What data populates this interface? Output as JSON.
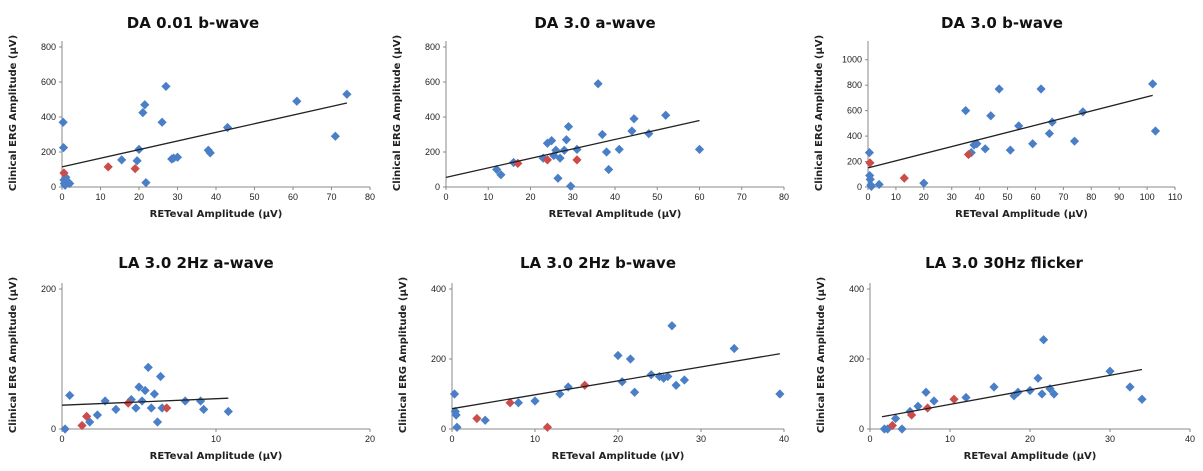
{
  "colors": {
    "blue_marker": "#4a7fc8",
    "red_marker": "#cc4b4b",
    "trendline": "#222222",
    "axis": "#888888"
  },
  "chart_data": [
    {
      "type": "scatter",
      "title": "DA 0.01 b-wave",
      "xlabel": "RETeval Amplitude (μV)",
      "ylabel": "Clinical ERG Amplitude (μV)",
      "xlim": [
        0,
        80
      ],
      "ylim": [
        0,
        800
      ],
      "xticks": [
        0,
        10,
        20,
        30,
        40,
        50,
        60,
        70,
        80
      ],
      "yticks": [
        0,
        200,
        400,
        600,
        800
      ],
      "grid": false,
      "trendline": [
        [
          0,
          115
        ],
        [
          74,
          480
        ]
      ],
      "series": [
        {
          "color": "blue",
          "points": [
            [
              0.3,
              370
            ],
            [
              0.4,
              225
            ],
            [
              0.5,
              40
            ],
            [
              0.6,
              20
            ],
            [
              0.8,
              10
            ],
            [
              1,
              55
            ],
            [
              1.5,
              30
            ],
            [
              2,
              20
            ],
            [
              15.5,
              155
            ],
            [
              19.5,
              150
            ],
            [
              20,
              215
            ],
            [
              21,
              425
            ],
            [
              21.5,
              470
            ],
            [
              21.8,
              25
            ],
            [
              26,
              370
            ],
            [
              27,
              575
            ],
            [
              28.5,
              160
            ],
            [
              29,
              165
            ],
            [
              30,
              170
            ],
            [
              38,
              210
            ],
            [
              38.5,
              195
            ],
            [
              43,
              340
            ],
            [
              61,
              490
            ],
            [
              71,
              290
            ],
            [
              74,
              530
            ]
          ]
        },
        {
          "color": "red",
          "points": [
            [
              0.5,
              80
            ],
            [
              12,
              115
            ],
            [
              19,
              105
            ]
          ]
        }
      ]
    },
    {
      "type": "scatter",
      "title": "DA 3.0 a-wave",
      "xlabel": "RETeval Amplitude (μV)",
      "ylabel": "Clinical ERG Amplitude (μV)",
      "xlim": [
        0,
        80
      ],
      "ylim": [
        0,
        800
      ],
      "xticks": [
        0,
        10,
        20,
        30,
        40,
        50,
        60,
        70,
        80
      ],
      "yticks": [
        0,
        200,
        400,
        600,
        800
      ],
      "grid": false,
      "trendline": [
        [
          0,
          55
        ],
        [
          60,
          380
        ]
      ],
      "series": [
        {
          "color": "blue",
          "points": [
            [
              12,
              100
            ],
            [
              13,
              70
            ],
            [
              16,
              140
            ],
            [
              23,
              165
            ],
            [
              24,
              250
            ],
            [
              25,
              265
            ],
            [
              25.5,
              180
            ],
            [
              26,
              210
            ],
            [
              26.5,
              50
            ],
            [
              27,
              165
            ],
            [
              28,
              210
            ],
            [
              28.5,
              270
            ],
            [
              29,
              345
            ],
            [
              29.5,
              5
            ],
            [
              31,
              215
            ],
            [
              36,
              590
            ],
            [
              37,
              300
            ],
            [
              38,
              200
            ],
            [
              38.5,
              100
            ],
            [
              41,
              215
            ],
            [
              44,
              320
            ],
            [
              44.5,
              390
            ],
            [
              48,
              305
            ],
            [
              52,
              410
            ],
            [
              60,
              215
            ]
          ]
        },
        {
          "color": "red",
          "points": [
            [
              17,
              135
            ],
            [
              24,
              155
            ],
            [
              31,
              155
            ]
          ]
        }
      ]
    },
    {
      "type": "scatter",
      "title": "DA 3.0 b-wave",
      "xlabel": "RETeval Amplitude (μV)",
      "ylabel": "Clinical ERG Amplitude (μV)",
      "xlim": [
        0,
        110
      ],
      "ylim": [
        0,
        1100
      ],
      "xticks": [
        0,
        10,
        20,
        30,
        40,
        50,
        60,
        70,
        80,
        90,
        100,
        110
      ],
      "yticks": [
        0,
        200,
        400,
        600,
        800,
        1000
      ],
      "grid": false,
      "trendline": [
        [
          0,
          150
        ],
        [
          102,
          720
        ]
      ],
      "series": [
        {
          "color": "blue",
          "points": [
            [
              0.5,
              270
            ],
            [
              0.6,
              90
            ],
            [
              0.8,
              60
            ],
            [
              1,
              15
            ],
            [
              1.2,
              5
            ],
            [
              4,
              20
            ],
            [
              20,
              30
            ],
            [
              35,
              600
            ],
            [
              37,
              270
            ],
            [
              38,
              330
            ],
            [
              39,
              340
            ],
            [
              42,
              300
            ],
            [
              44,
              560
            ],
            [
              47,
              770
            ],
            [
              51,
              290
            ],
            [
              54,
              480
            ],
            [
              59,
              340
            ],
            [
              62,
              770
            ],
            [
              65,
              420
            ],
            [
              66,
              510
            ],
            [
              74,
              360
            ],
            [
              77,
              590
            ],
            [
              102,
              810
            ],
            [
              103,
              440
            ]
          ]
        },
        {
          "color": "red",
          "points": [
            [
              0.7,
              190
            ],
            [
              13,
              70
            ],
            [
              36,
              255
            ]
          ]
        }
      ]
    },
    {
      "type": "scatter",
      "title": "LA 3.0 2Hz a-wave",
      "xlabel": "RETeval Amplitude (μV)",
      "ylabel": "Clinical ERG Amplitude (μV)",
      "xlim": [
        0,
        20
      ],
      "ylim": [
        0,
        200
      ],
      "xticks": [
        0,
        10,
        20
      ],
      "yticks": [
        0,
        200
      ],
      "grid": false,
      "trendline": [
        [
          0,
          34
        ],
        [
          10.8,
          44
        ]
      ],
      "series": [
        {
          "color": "blue",
          "points": [
            [
              0.2,
              0
            ],
            [
              0.5,
              48
            ],
            [
              1.8,
              10
            ],
            [
              2.3,
              20
            ],
            [
              2.8,
              40
            ],
            [
              3.5,
              28
            ],
            [
              4.5,
              42
            ],
            [
              4.8,
              30
            ],
            [
              5,
              60
            ],
            [
              5.2,
              40
            ],
            [
              5.4,
              55
            ],
            [
              5.6,
              88
            ],
            [
              5.8,
              30
            ],
            [
              6,
              50
            ],
            [
              6.2,
              10
            ],
            [
              6.4,
              75
            ],
            [
              6.5,
              30
            ],
            [
              8,
              40
            ],
            [
              9,
              40
            ],
            [
              9.2,
              28
            ],
            [
              10.8,
              25
            ]
          ]
        },
        {
          "color": "red",
          "points": [
            [
              1.3,
              5
            ],
            [
              1.6,
              18
            ],
            [
              4.3,
              37
            ],
            [
              6.8,
              30
            ]
          ]
        }
      ]
    },
    {
      "type": "scatter",
      "title": "LA 3.0 2Hz b-wave",
      "xlabel": "RETeval Amplitude (μV)",
      "ylabel": "Clinical ERG Amplitude (μV)",
      "xlim": [
        0,
        40
      ],
      "ylim": [
        0,
        400
      ],
      "xticks": [
        0,
        10,
        20,
        30,
        40
      ],
      "yticks": [
        0,
        200,
        400
      ],
      "grid": false,
      "trendline": [
        [
          0,
          58
        ],
        [
          39.5,
          215
        ]
      ],
      "series": [
        {
          "color": "blue",
          "points": [
            [
              0.3,
              100
            ],
            [
              0.4,
              50
            ],
            [
              0.5,
              40
            ],
            [
              0.6,
              5
            ],
            [
              4,
              25
            ],
            [
              8,
              75
            ],
            [
              10,
              80
            ],
            [
              13,
              100
            ],
            [
              14,
              120
            ],
            [
              20,
              210
            ],
            [
              20.5,
              135
            ],
            [
              21.5,
              200
            ],
            [
              22,
              105
            ],
            [
              24,
              155
            ],
            [
              25,
              150
            ],
            [
              25.5,
              145
            ],
            [
              26,
              150
            ],
            [
              26.5,
              295
            ],
            [
              27,
              125
            ],
            [
              28,
              140
            ],
            [
              34,
              230
            ],
            [
              39.5,
              100
            ]
          ]
        },
        {
          "color": "red",
          "points": [
            [
              3,
              30
            ],
            [
              7,
              75
            ],
            [
              11.5,
              5
            ],
            [
              16,
              125
            ]
          ]
        }
      ]
    },
    {
      "type": "scatter",
      "title": "LA 3.0 30Hz flicker",
      "xlabel": "RETeval Amplitude (μV)",
      "ylabel": "Clinical ERG Amplitude (μV)",
      "xlim": [
        0,
        40
      ],
      "ylim": [
        0,
        400
      ],
      "xticks": [
        0,
        10,
        20,
        30,
        40
      ],
      "yticks": [
        0,
        200,
        400
      ],
      "grid": false,
      "trendline": [
        [
          1.5,
          35
        ],
        [
          34,
          170
        ]
      ],
      "series": [
        {
          "color": "blue",
          "points": [
            [
              1.8,
              0
            ],
            [
              2.2,
              0
            ],
            [
              3.2,
              30
            ],
            [
              4,
              0
            ],
            [
              5,
              50
            ],
            [
              6,
              65
            ],
            [
              7,
              105
            ],
            [
              8,
              80
            ],
            [
              12,
              90
            ],
            [
              15.5,
              120
            ],
            [
              18,
              95
            ],
            [
              18.5,
              105
            ],
            [
              20,
              110
            ],
            [
              21,
              145
            ],
            [
              21.5,
              100
            ],
            [
              21.7,
              255
            ],
            [
              22.5,
              115
            ],
            [
              23,
              100
            ],
            [
              30,
              165
            ],
            [
              32.5,
              120
            ],
            [
              34,
              85
            ]
          ]
        },
        {
          "color": "red",
          "points": [
            [
              2.8,
              10
            ],
            [
              5.2,
              40
            ],
            [
              7.2,
              60
            ],
            [
              10.5,
              85
            ]
          ]
        }
      ]
    }
  ]
}
